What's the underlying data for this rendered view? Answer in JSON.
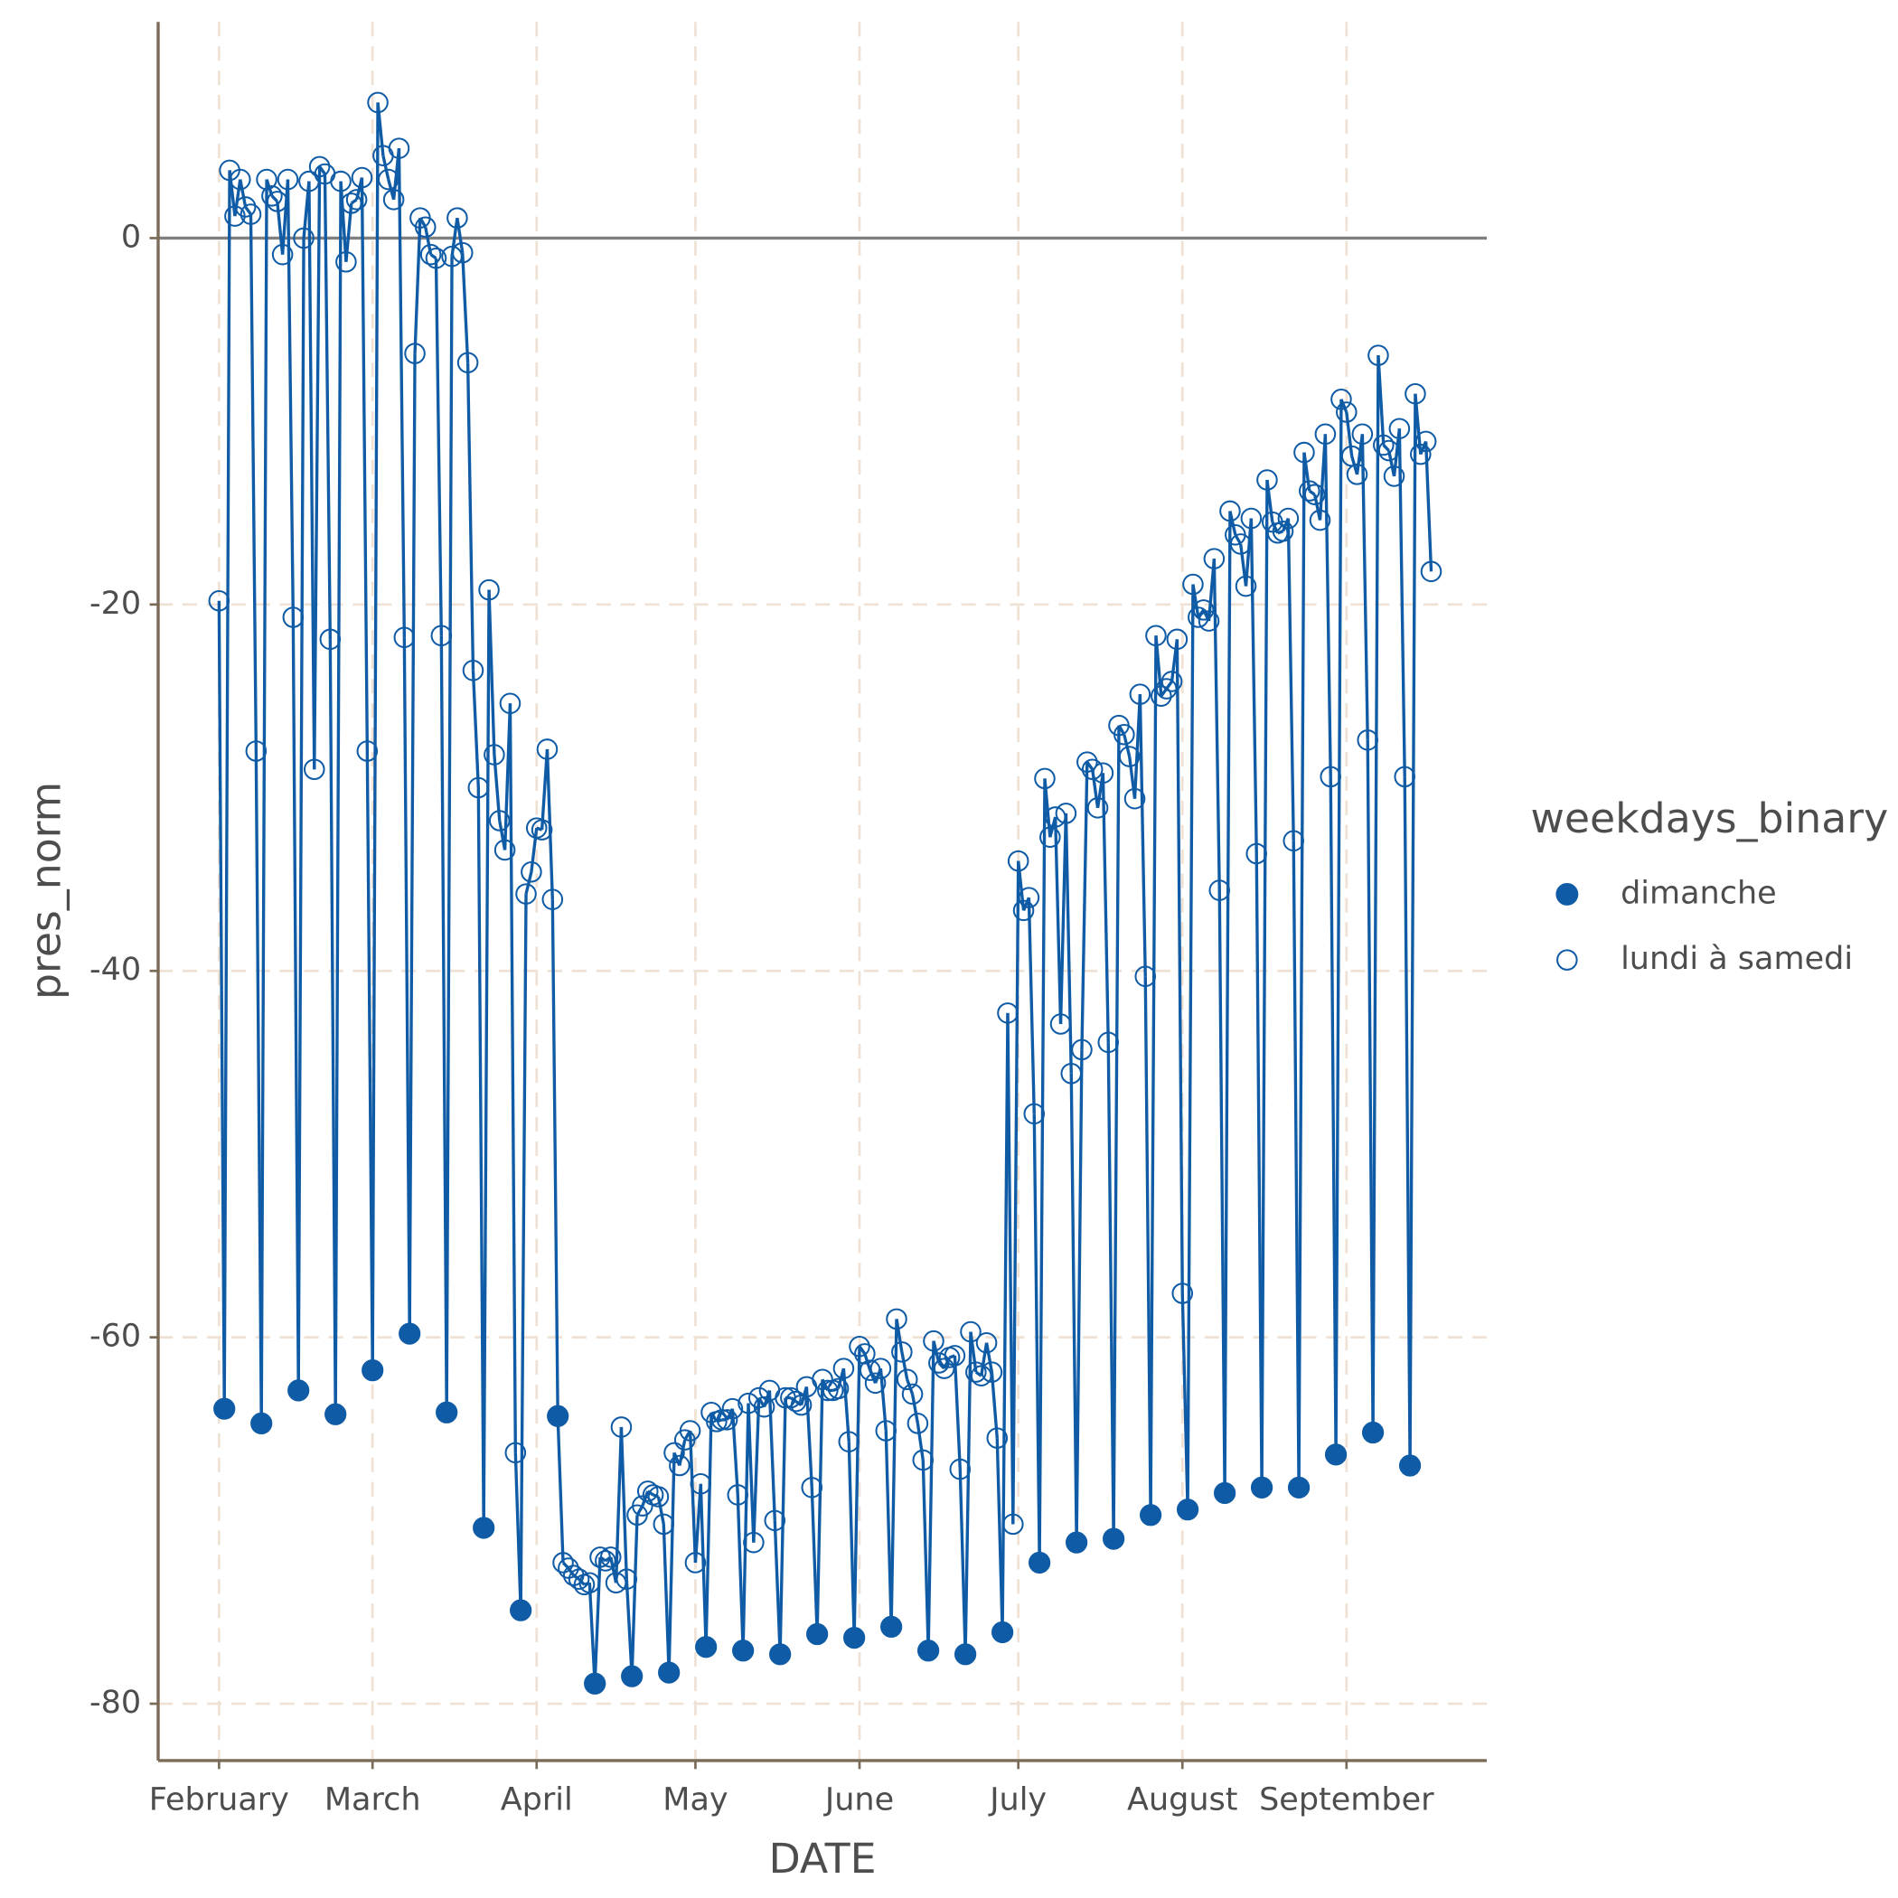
{
  "chart_data": {
    "type": "line-points",
    "x_label": "DATE",
    "y_label": "pres_norm",
    "legend_title": "weekdays_binary",
    "xlim": [
      -11.5,
      239.5
    ],
    "ylim": [
      11.8,
      -83.1
    ],
    "xticks": [
      {
        "value": 0,
        "label": "February"
      },
      {
        "value": 29,
        "label": "March"
      },
      {
        "value": 60,
        "label": "April"
      },
      {
        "value": 90,
        "label": "May"
      },
      {
        "value": 121,
        "label": "June"
      },
      {
        "value": 151,
        "label": "July"
      },
      {
        "value": 182,
        "label": "August"
      },
      {
        "value": 213,
        "label": "September"
      }
    ],
    "yticks": [
      0,
      -20,
      -40,
      -60,
      -80
    ],
    "hline": 0,
    "grid": true,
    "series": [
      {
        "name": "dimanche",
        "color": "#0f5ba5",
        "marker": "filled",
        "x": [
          1,
          8,
          15,
          22,
          29,
          36,
          43,
          50,
          57,
          64,
          71,
          78,
          85,
          92,
          99,
          106,
          113,
          120,
          127,
          134,
          141,
          148,
          155,
          162,
          169,
          176,
          183,
          190,
          197,
          204,
          211,
          218,
          225
        ],
        "values": [
          -63.9,
          -64.7,
          -62.9,
          -64.2,
          -61.8,
          -59.8,
          -64.1,
          -70.4,
          -74.9,
          -64.3,
          -78.9,
          -78.5,
          -78.3,
          -76.9,
          -77.1,
          -77.3,
          -76.2,
          -76.4,
          -75.8,
          -77.1,
          -77.3,
          -76.1,
          -72.3,
          -71.2,
          -71.0,
          -69.7,
          -69.4,
          -68.5,
          -68.2,
          -68.2,
          -66.4,
          -65.2,
          -67.0
        ]
      },
      {
        "name": "lundi à samedi",
        "color": "#0f5ba5",
        "marker": "open",
        "x": [
          0,
          2,
          3,
          4,
          5,
          6,
          7,
          9,
          10,
          11,
          12,
          13,
          14,
          16,
          17,
          18,
          19,
          20,
          21,
          23,
          24,
          25,
          26,
          27,
          28,
          30,
          31,
          32,
          33,
          34,
          35,
          37,
          38,
          39,
          40,
          41,
          42,
          44,
          45,
          46,
          47,
          48,
          49,
          51,
          52,
          53,
          54,
          55,
          56,
          58,
          59,
          60,
          61,
          62,
          63,
          65,
          66,
          67,
          68,
          69,
          70,
          72,
          73,
          74,
          75,
          76,
          77,
          79,
          80,
          81,
          82,
          83,
          84,
          86,
          87,
          88,
          89,
          90,
          91,
          93,
          94,
          95,
          96,
          97,
          98,
          100,
          101,
          102,
          103,
          104,
          105,
          107,
          108,
          109,
          110,
          111,
          112,
          114,
          115,
          116,
          117,
          118,
          119,
          121,
          122,
          123,
          124,
          125,
          126,
          128,
          129,
          130,
          131,
          132,
          133,
          135,
          136,
          137,
          138,
          139,
          140,
          142,
          143,
          144,
          145,
          146,
          147,
          149,
          150,
          151,
          152,
          153,
          154,
          156,
          157,
          158,
          159,
          160,
          161,
          163,
          164,
          165,
          166,
          167,
          168,
          170,
          171,
          172,
          173,
          174,
          175,
          177,
          178,
          179,
          180,
          181,
          182,
          184,
          185,
          186,
          187,
          188,
          189,
          191,
          192,
          193,
          194,
          195,
          196,
          198,
          199,
          200,
          201,
          202,
          203,
          205,
          206,
          207,
          208,
          209,
          210,
          212,
          213,
          214,
          215,
          216,
          217,
          219,
          220,
          221,
          222,
          223,
          224,
          226,
          227,
          228,
          229
        ],
        "values": [
          -19.8,
          3.7,
          1.2,
          3.2,
          1.7,
          1.3,
          -28.0,
          3.2,
          2.3,
          2.0,
          -0.9,
          3.2,
          -20.7,
          0,
          3.1,
          -29.0,
          3.9,
          3.5,
          -21.9,
          3.1,
          -1.3,
          1.9,
          2.1,
          3.3,
          -28.0,
          7.4,
          4.5,
          3.2,
          2.1,
          4.9,
          -21.8,
          -6.3,
          1.1,
          0.6,
          -0.9,
          -1.1,
          -21.7,
          -1.0,
          1.1,
          -0.8,
          -6.8,
          -23.6,
          -30.0,
          -19.2,
          -28.2,
          -31.8,
          -33.4,
          -25.4,
          -66.3,
          -35.8,
          -34.6,
          -32.2,
          -32.3,
          -27.9,
          -36.1,
          -72.3,
          -72.6,
          -73.0,
          -73.2,
          -73.5,
          -73.4,
          -72.0,
          -72.2,
          -72.0,
          -73.4,
          -64.9,
          -73.2,
          -69.7,
          -69.2,
          -68.4,
          -68.6,
          -68.7,
          -70.2,
          -66.3,
          -67.0,
          -65.6,
          -65.1,
          -72.3,
          -68.0,
          -64.1,
          -64.6,
          -64.5,
          -64.5,
          -63.9,
          -68.6,
          -63.6,
          -71.2,
          -63.3,
          -63.8,
          -62.9,
          -70.0,
          -63.3,
          -63.3,
          -63.5,
          -63.7,
          -62.7,
          -68.2,
          -62.3,
          -62.9,
          -62.9,
          -62.8,
          -61.7,
          -65.7,
          -60.5,
          -60.9,
          -61.8,
          -62.5,
          -61.7,
          -65.1,
          -59.0,
          -60.8,
          -62.3,
          -63.1,
          -64.7,
          -66.7,
          -60.2,
          -61.4,
          -61.7,
          -61.1,
          -61.0,
          -67.2,
          -59.7,
          -61.9,
          -62.1,
          -60.3,
          -61.9,
          -65.5,
          -42.3,
          -70.2,
          -34.0,
          -36.7,
          -36.0,
          -47.8,
          -29.5,
          -32.7,
          -31.6,
          -42.9,
          -31.4,
          -45.6,
          -44.3,
          -28.6,
          -29.0,
          -31.1,
          -29.2,
          -43.9,
          -26.6,
          -27.1,
          -28.3,
          -30.6,
          -24.9,
          -40.3,
          -21.7,
          -25.0,
          -24.6,
          -24.2,
          -21.9,
          -57.6,
          -18.9,
          -20.7,
          -20.3,
          -20.9,
          -17.5,
          -35.6,
          -14.9,
          -16.2,
          -16.7,
          -19.0,
          -15.3,
          -33.6,
          -13.2,
          -15.5,
          -16.1,
          -16.0,
          -15.3,
          -32.9,
          -11.7,
          -13.8,
          -14.0,
          -15.4,
          -10.7,
          -29.4,
          -8.8,
          -9.5,
          -11.9,
          -12.9,
          -10.7,
          -27.4,
          -6.4,
          -11.3,
          -11.6,
          -13.0,
          -10.4,
          -29.4,
          -8.5,
          -11.8,
          -11.1,
          -18.2
        ]
      }
    ]
  }
}
